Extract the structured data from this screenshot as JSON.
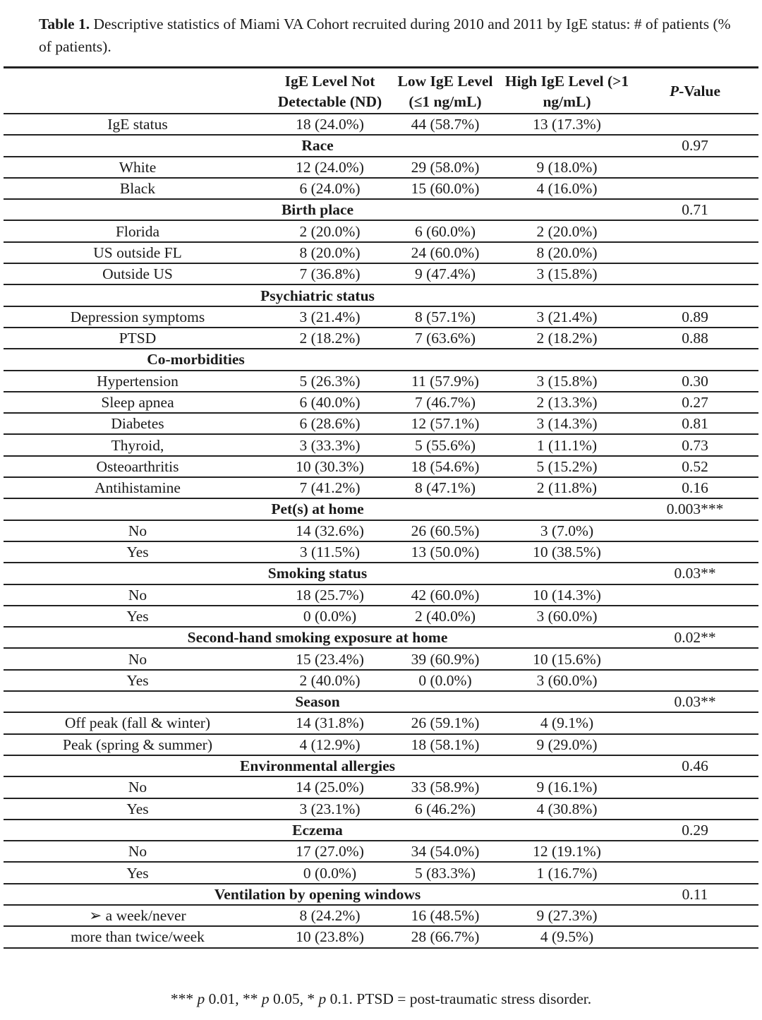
{
  "caption": {
    "label": "Table 1.",
    "text": " Descriptive statistics of Miami VA Cohort recruited during 2010 and 2011 by IgE status: # of patients (% of patients)."
  },
  "headers": [
    "",
    "IgE Level Not Detectable (ND)",
    "Low IgE Level (≤1 ng/mL)",
    "High IgE Level (>1 ng/mL)",
    "P-Value"
  ],
  "rows": [
    {
      "type": "data",
      "label": "IgE status",
      "values": [
        "18 (24.0%)",
        "44 (58.7%)",
        "13 (17.3%)"
      ],
      "p": ""
    },
    {
      "type": "section",
      "label": "Race",
      "p": "0.97"
    },
    {
      "type": "data",
      "label": "White",
      "values": [
        "12 (24.0%)",
        "29 (58.0%)",
        "9 (18.0%)"
      ],
      "p": ""
    },
    {
      "type": "data",
      "label": "Black",
      "values": [
        "6 (24.0%)",
        "15 (60.0%)",
        "4 (16.0%)"
      ],
      "p": ""
    },
    {
      "type": "section",
      "label": "Birth place",
      "p": "0.71"
    },
    {
      "type": "data",
      "label": "Florida",
      "values": [
        "2 (20.0%)",
        "6 (60.0%)",
        "2 (20.0%)"
      ],
      "p": ""
    },
    {
      "type": "data",
      "label": "US outside FL",
      "values": [
        "8 (20.0%)",
        "24 (60.0%)",
        "8 (20.0%)"
      ],
      "p": ""
    },
    {
      "type": "data",
      "label": "Outside US",
      "values": [
        "7 (36.8%)",
        "9 (47.4%)",
        "3 (15.8%)"
      ],
      "p": ""
    },
    {
      "type": "section",
      "label": "Psychiatric status",
      "p": ""
    },
    {
      "type": "data",
      "label": "Depression symptoms",
      "values": [
        "3 (21.4%)",
        "8 (57.1%)",
        "3 (21.4%)"
      ],
      "p": "0.89"
    },
    {
      "type": "data",
      "label": "PTSD",
      "values": [
        "2 (18.2%)",
        "7 (63.6%)",
        "2 (18.2%)"
      ],
      "p": "0.88"
    },
    {
      "type": "section",
      "label": "Co-morbidities",
      "p": "",
      "narrow": true
    },
    {
      "type": "data",
      "label": "Hypertension",
      "values": [
        "5 (26.3%)",
        "11 (57.9%)",
        "3 (15.8%)"
      ],
      "p": "0.30"
    },
    {
      "type": "data",
      "label": "Sleep apnea",
      "values": [
        "6 (40.0%)",
        "7 (46.7%)",
        "2 (13.3%)"
      ],
      "p": "0.27"
    },
    {
      "type": "data",
      "label": "Diabetes",
      "values": [
        "6 (28.6%)",
        "12 (57.1%)",
        "3 (14.3%)"
      ],
      "p": "0.81"
    },
    {
      "type": "data",
      "label": "Thyroid,",
      "values": [
        "3 (33.3%)",
        "5 (55.6%)",
        "1 (11.1%)"
      ],
      "p": "0.73"
    },
    {
      "type": "data",
      "label": "Osteoarthritis",
      "values": [
        "10 (30.3%)",
        "18 (54.6%)",
        "5 (15.2%)"
      ],
      "p": "0.52"
    },
    {
      "type": "data",
      "label": "Antihistamine",
      "values": [
        "7 (41.2%)",
        "8 (47.1%)",
        "2 (11.8%)"
      ],
      "p": "0.16"
    },
    {
      "type": "section",
      "label": "Pet(s) at home",
      "p": "0.003***"
    },
    {
      "type": "data",
      "label": "No",
      "values": [
        "14 (32.6%)",
        "26 (60.5%)",
        "3 (7.0%)"
      ],
      "p": ""
    },
    {
      "type": "data",
      "label": "Yes",
      "values": [
        "3 (11.5%)",
        "13 (50.0%)",
        "10 (38.5%)"
      ],
      "p": ""
    },
    {
      "type": "section",
      "label": "Smoking status",
      "p": "0.03**"
    },
    {
      "type": "data",
      "label": "No",
      "values": [
        "18 (25.7%)",
        "42 (60.0%)",
        "10 (14.3%)"
      ],
      "p": ""
    },
    {
      "type": "data",
      "label": "Yes",
      "values": [
        "0 (0.0%)",
        "2 (40.0%)",
        "3 (60.0%)"
      ],
      "p": ""
    },
    {
      "type": "section",
      "label": "Second-hand smoking exposure at home",
      "p": "0.02**"
    },
    {
      "type": "data",
      "label": "No",
      "values": [
        "15 (23.4%)",
        "39 (60.9%)",
        "10 (15.6%)"
      ],
      "p": ""
    },
    {
      "type": "data",
      "label": "Yes",
      "values": [
        "2 (40.0%)",
        "0 (0.0%)",
        "3 (60.0%)"
      ],
      "p": ""
    },
    {
      "type": "section",
      "label": "Season",
      "p": "0.03**"
    },
    {
      "type": "data",
      "label": "Off peak (fall & winter)",
      "values": [
        "14 (31.8%)",
        "26 (59.1%)",
        "4 (9.1%)"
      ],
      "p": ""
    },
    {
      "type": "data",
      "label": "Peak (spring & summer)",
      "values": [
        "4 (12.9%)",
        "18 (58.1%)",
        "9 (29.0%)"
      ],
      "p": ""
    },
    {
      "type": "section",
      "label": "Environmental allergies",
      "p": "0.46"
    },
    {
      "type": "data",
      "label": "No",
      "values": [
        "14 (25.0%)",
        "33 (58.9%)",
        "9 (16.1%)"
      ],
      "p": ""
    },
    {
      "type": "data",
      "label": "Yes",
      "values": [
        "3 (23.1%)",
        "6 (46.2%)",
        "4 (30.8%)"
      ],
      "p": ""
    },
    {
      "type": "section",
      "label": "Eczema",
      "p": "0.29"
    },
    {
      "type": "data",
      "label": "No",
      "values": [
        "17 (27.0%)",
        "34 (54.0%)",
        "12 (19.1%)"
      ],
      "p": ""
    },
    {
      "type": "data",
      "label": "Yes",
      "values": [
        "0 (0.0%)",
        "5 (83.3%)",
        "1 (16.7%)"
      ],
      "p": ""
    },
    {
      "type": "section",
      "label": "Ventilation by opening windows",
      "p": "0.11"
    },
    {
      "type": "data",
      "label": "➢    a week/never",
      "values": [
        "8 (24.2%)",
        "16 (48.5%)",
        "9 (27.3%)"
      ],
      "p": ""
    },
    {
      "type": "data",
      "label": "more than twice/week",
      "values": [
        "10 (23.8%)",
        "28 (66.7%)",
        "4 (9.5%)"
      ],
      "p": ""
    }
  ],
  "footnote": "*** p < 0.01, ** p < 0.05, * p < 0.1. PTSD = post-traumatic stress disorder."
}
